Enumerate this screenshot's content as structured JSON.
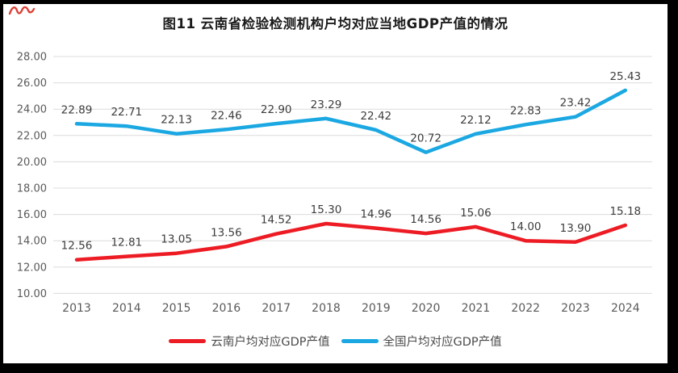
{
  "chart_data": {
    "type": "line",
    "title": "图11 云南省检验检测机构户均对应当地GDP产值的情况",
    "categories": [
      "2013",
      "2014",
      "2015",
      "2016",
      "2017",
      "2018",
      "2019",
      "2020",
      "2021",
      "2022",
      "2023",
      "2024"
    ],
    "series": [
      {
        "name": "云南户均对应GDP产值",
        "color": "#ed1c24",
        "values": [
          12.56,
          12.81,
          13.05,
          13.56,
          14.52,
          15.3,
          14.96,
          14.56,
          15.06,
          14.0,
          13.9,
          15.18
        ]
      },
      {
        "name": "全国户均对应GDP产值",
        "color": "#1ba8e2",
        "values": [
          22.89,
          22.71,
          22.13,
          22.46,
          22.9,
          23.29,
          22.42,
          20.72,
          22.12,
          22.83,
          23.42,
          25.43
        ]
      }
    ],
    "ylim": [
      10,
      28
    ],
    "ytick_step": 2,
    "yticks": [
      "28.00",
      "26.00",
      "24.00",
      "22.00",
      "20.00",
      "18.00",
      "16.00",
      "14.00",
      "12.00",
      "10.00"
    ],
    "grid": true,
    "legend_position": "bottom",
    "data_labels": true,
    "label_decimals": 2
  },
  "colors": {
    "gridline": "#dcdcdc",
    "axis_text": "#595959",
    "data_label_text": "#3d3d3d",
    "title_text": "#1b1b1b",
    "card_background": "#ffffff",
    "frame_background": "#000000",
    "scribble_mark": "#d93025"
  }
}
